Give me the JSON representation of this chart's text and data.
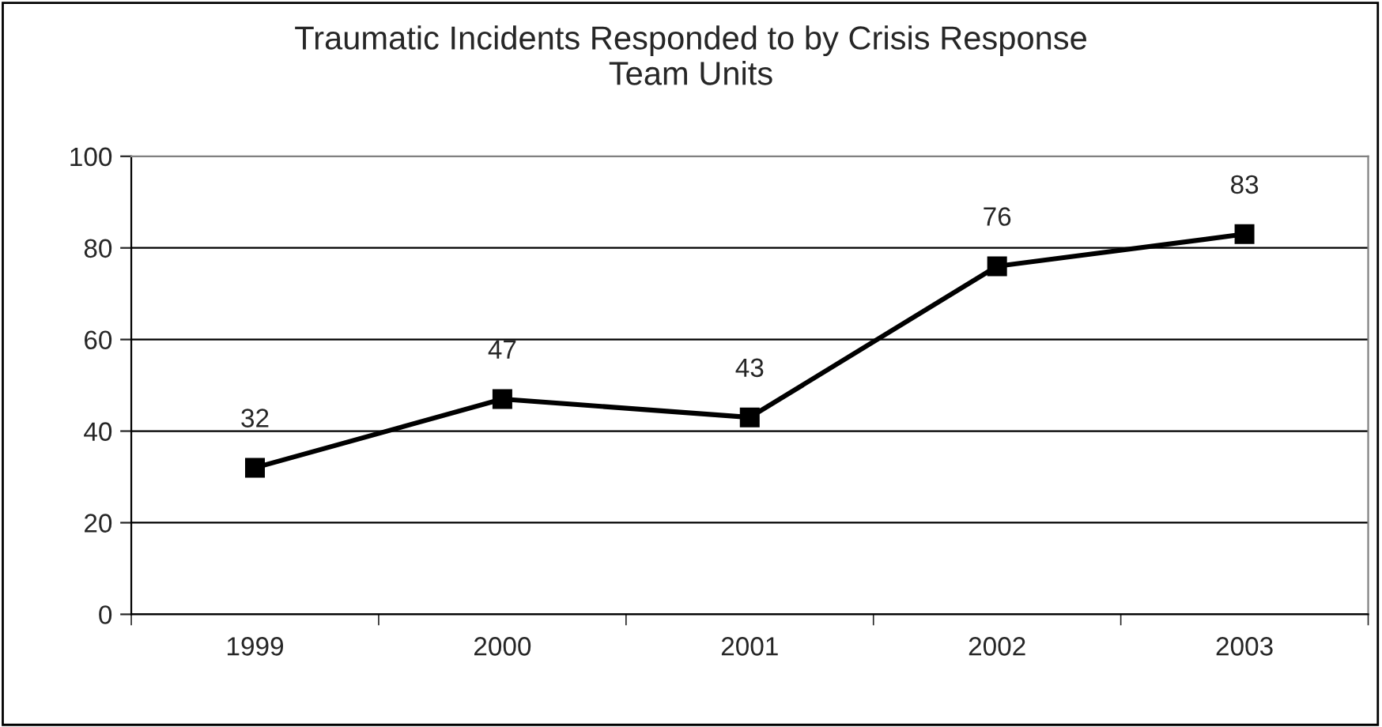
{
  "chart_data": {
    "type": "line",
    "title": "Traumatic Incidents Responded to by Crisis Response\nTeam Units",
    "categories": [
      "1999",
      "2000",
      "2001",
      "2002",
      "2003"
    ],
    "series": [
      {
        "color": "#000000",
        "values": [
          32,
          47,
          43,
          76,
          83
        ]
      }
    ],
    "ylim": [
      0,
      100
    ],
    "yticks": [
      0,
      20,
      40,
      60,
      80,
      100
    ],
    "grid": "y",
    "marker": "square",
    "line_style": "solid",
    "data_labels": true
  }
}
